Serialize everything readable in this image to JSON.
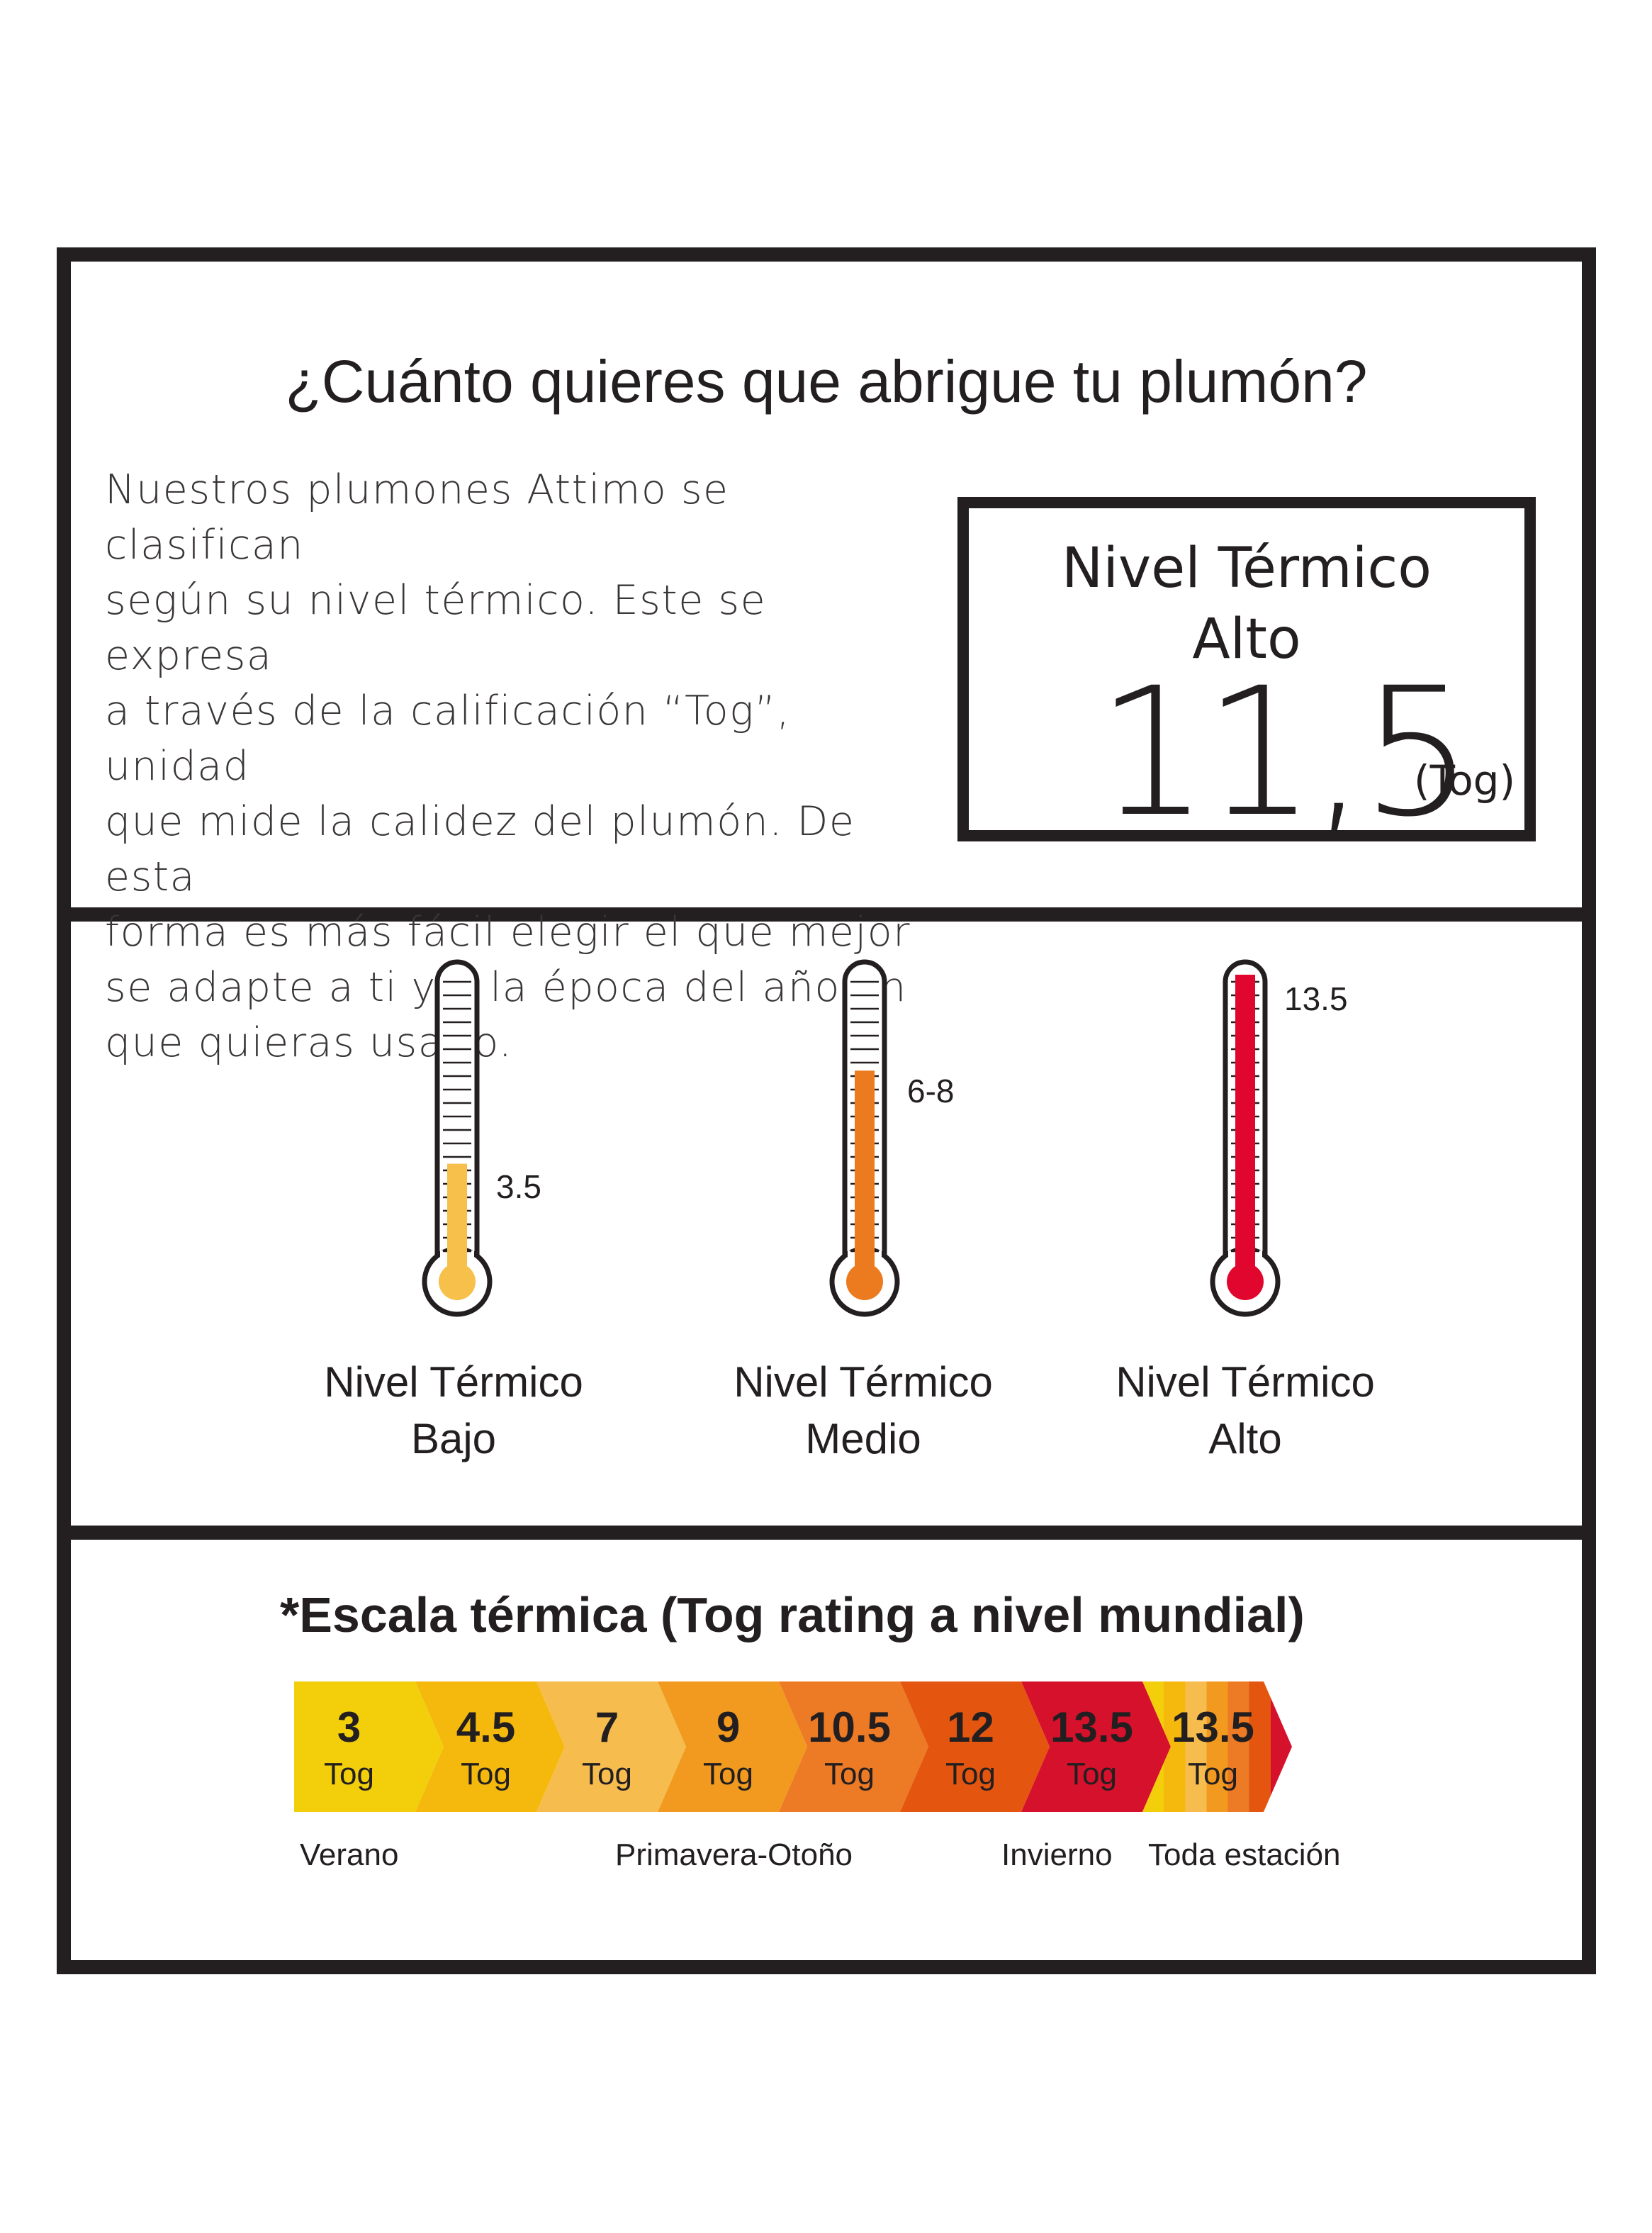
{
  "header": {
    "title": "¿Cuánto quieres que abrigue tu plumón?",
    "intro_lines": [
      "Nuestros plumones Attimo se clasifican",
      "según su nivel térmico. Este se expresa",
      "a través de la calificación “Tog”, unidad",
      "que mide la calidez del plumón. De esta",
      "forma es más fácil elegir el que mejor",
      "se adapte a ti y a la época del año en",
      "que quieras usarlo."
    ]
  },
  "rating": {
    "title": "Nivel Térmico",
    "level": "Alto",
    "value": "11,5",
    "unit": "(Tog)"
  },
  "thermometers": [
    {
      "value_label": "3.5",
      "fill_fraction": 0.31,
      "color": "#f6c04a",
      "label_line1": "Nivel Térmico",
      "label_line2": "Bajo"
    },
    {
      "value_label": "6-8",
      "fill_fraction": 0.64,
      "color": "#ec7b1f",
      "label_line1": "Nivel Térmico",
      "label_line2": "Medio"
    },
    {
      "value_label": "13.5",
      "fill_fraction": 0.98,
      "color": "#e1062d",
      "label_line1": "Nivel Térmico",
      "label_line2": "Alto"
    }
  ],
  "scale": {
    "title": "*Escala térmica (Tog rating a nivel mundial)",
    "unit_label": "Tog",
    "steps": [
      {
        "value": "3",
        "color": "#f2cf0a"
      },
      {
        "value": "4.5",
        "color": "#f5b90d"
      },
      {
        "value": "7",
        "color": "#f6bd4e"
      },
      {
        "value": "9",
        "color": "#f19a1f"
      },
      {
        "value": "10.5",
        "color": "#ed7a24"
      },
      {
        "value": "12",
        "color": "#e4560f"
      },
      {
        "value": "13.5",
        "color": "#d6112c"
      },
      {
        "value": "13.5",
        "color": "multicolor"
      }
    ],
    "seasons": [
      "Verano",
      "Primavera-Otoño",
      "Invierno",
      "Toda estación"
    ]
  }
}
